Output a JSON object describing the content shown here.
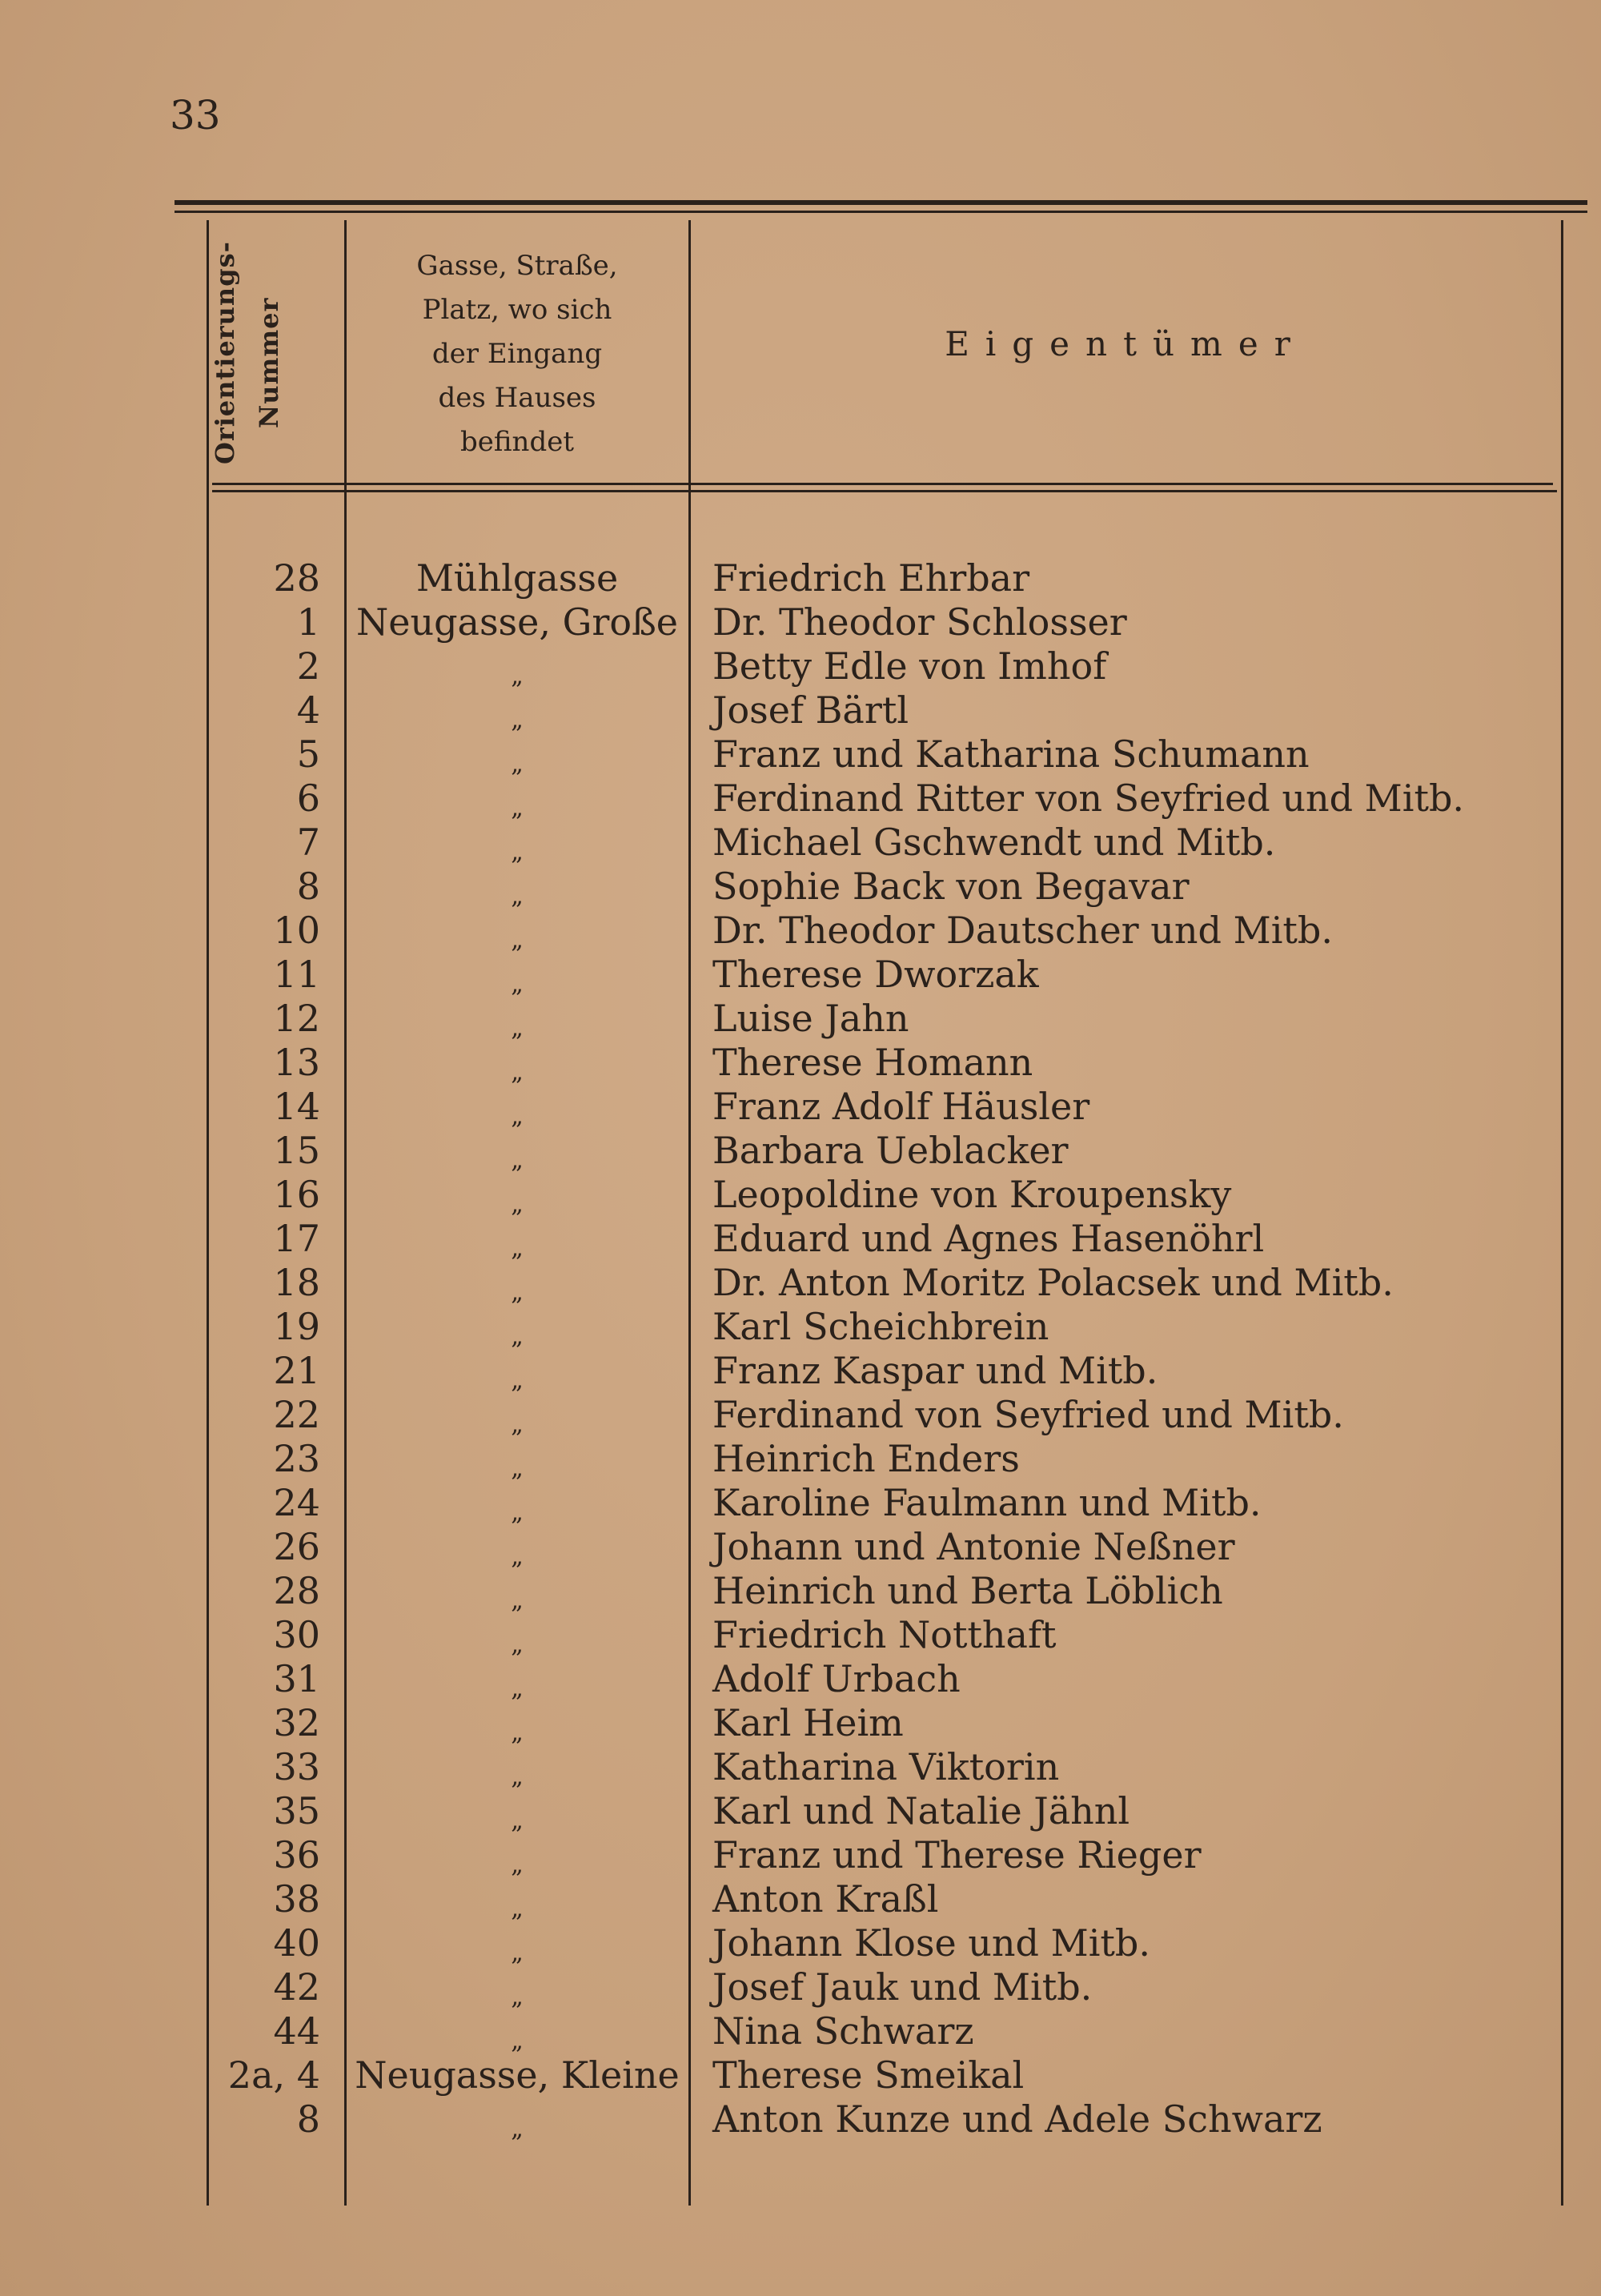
{
  "page_number": "33",
  "headers": {
    "number_line1": "Orientierungs-",
    "number_line2": "Nummer",
    "street": [
      "Gasse, Straße,",
      "Platz, wo sich",
      "der Eingang",
      "des Hauses",
      "befindet"
    ],
    "owner": "Eigentümer"
  },
  "rows": [
    {
      "num": "28",
      "street": "Mühlgasse",
      "owner": "Friedrich Ehrbar"
    },
    {
      "num": "1",
      "street": "Neugasse, Große",
      "owner": "Dr. Theodor Schlosser"
    },
    {
      "num": "2",
      "street": "„",
      "owner": "Betty Edle von Imhof"
    },
    {
      "num": "4",
      "street": "„",
      "owner": "Josef Bärtl"
    },
    {
      "num": "5",
      "street": "„",
      "owner": "Franz und Katharina Schumann"
    },
    {
      "num": "6",
      "street": "„",
      "owner": "Ferdinand Ritter von Seyfried und Mitb."
    },
    {
      "num": "7",
      "street": "„",
      "owner": "Michael Gschwendt und Mitb."
    },
    {
      "num": "8",
      "street": "„",
      "owner": "Sophie Back von Begavar"
    },
    {
      "num": "10",
      "street": "„",
      "owner": "Dr. Theodor Dautscher und Mitb."
    },
    {
      "num": "11",
      "street": "„",
      "owner": "Therese Dworzak"
    },
    {
      "num": "12",
      "street": "„",
      "owner": "Luise Jahn"
    },
    {
      "num": "13",
      "street": "„",
      "owner": "Therese Homann"
    },
    {
      "num": "14",
      "street": "„",
      "owner": "Franz Adolf Häusler"
    },
    {
      "num": "15",
      "street": "„",
      "owner": "Barbara Ueblacker"
    },
    {
      "num": "16",
      "street": "„",
      "owner": "Leopoldine von Kroupensky"
    },
    {
      "num": "17",
      "street": "„",
      "owner": "Eduard und Agnes Hasenöhrl"
    },
    {
      "num": "18",
      "street": "„",
      "owner": "Dr. Anton Moritz Polacsek und Mitb."
    },
    {
      "num": "19",
      "street": "„",
      "owner": "Karl Scheichbrein"
    },
    {
      "num": "21",
      "street": "„",
      "owner": "Franz Kaspar und Mitb."
    },
    {
      "num": "22",
      "street": "„",
      "owner": "Ferdinand von Seyfried und Mitb."
    },
    {
      "num": "23",
      "street": "„",
      "owner": "Heinrich Enders"
    },
    {
      "num": "24",
      "street": "„",
      "owner": "Karoline Faulmann und Mitb."
    },
    {
      "num": "26",
      "street": "„",
      "owner": "Johann und Antonie Neßner"
    },
    {
      "num": "28",
      "street": "„",
      "owner": "Heinrich und Berta Löblich"
    },
    {
      "num": "30",
      "street": "„",
      "owner": "Friedrich Notthaft"
    },
    {
      "num": "31",
      "street": "„",
      "owner": "Adolf Urbach"
    },
    {
      "num": "32",
      "street": "„",
      "owner": "Karl Heim"
    },
    {
      "num": "33",
      "street": "„",
      "owner": "Katharina Viktorin"
    },
    {
      "num": "35",
      "street": "„",
      "owner": "Karl und Natalie Jähnl"
    },
    {
      "num": "36",
      "street": "„",
      "owner": "Franz und Therese Rieger"
    },
    {
      "num": "38",
      "street": "„",
      "owner": "Anton Kraßl"
    },
    {
      "num": "40",
      "street": "„",
      "owner": "Johann Klose und Mitb."
    },
    {
      "num": "42",
      "street": "„",
      "owner": "Josef Jauk und Mitb."
    },
    {
      "num": "44",
      "street": "„",
      "owner": "Nina Schwarz"
    },
    {
      "num": "2a, 4",
      "street": "Neugasse, Kleine",
      "owner": "Therese Smeikal"
    },
    {
      "num": "8",
      "street": "„",
      "owner": "Anton Kunze und Adele Schwarz"
    }
  ]
}
